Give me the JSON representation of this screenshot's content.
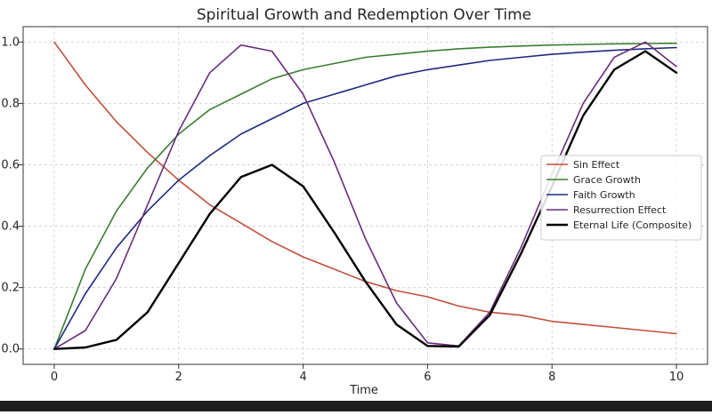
{
  "chart_data": {
    "type": "line",
    "title": "Spiritual Growth and Redemption Over Time",
    "xlabel": "Time",
    "ylabel": "",
    "xlim": [
      -0.5,
      10.5
    ],
    "ylim": [
      -0.05,
      1.05
    ],
    "xticks": [
      0,
      2,
      4,
      6,
      8,
      10
    ],
    "xtick_labels": [
      "0",
      "2",
      "4",
      "6",
      "8",
      "10"
    ],
    "yticks": [
      0.0,
      0.2,
      0.4,
      0.6,
      0.8,
      1.0
    ],
    "ytick_labels": [
      "0.0",
      "0.2",
      "0.4",
      "0.6",
      "0.8",
      "1.0"
    ],
    "grid": true,
    "legend_position": "center-right",
    "x": [
      0,
      0.5,
      1,
      1.5,
      2,
      2.5,
      3,
      3.5,
      4,
      4.5,
      5,
      5.5,
      6,
      6.5,
      7,
      7.5,
      8,
      8.5,
      9,
      9.5,
      10
    ],
    "series": [
      {
        "name": "Sin Effect",
        "color": "#c0503c",
        "values": [
          1.0,
          0.86,
          0.74,
          0.64,
          0.55,
          0.47,
          0.41,
          0.35,
          0.3,
          0.26,
          0.22,
          0.19,
          0.17,
          0.14,
          0.12,
          0.11,
          0.09,
          0.08,
          0.07,
          0.06,
          0.05
        ]
      },
      {
        "name": "Grace Growth",
        "color": "#3a7d32",
        "values": [
          0.0,
          0.26,
          0.45,
          0.59,
          0.7,
          0.78,
          0.83,
          0.88,
          0.91,
          0.93,
          0.95,
          0.96,
          0.97,
          0.978,
          0.983,
          0.987,
          0.99,
          0.992,
          0.994,
          0.995,
          0.996
        ]
      },
      {
        "name": "Faith Growth",
        "color": "#1f2a80",
        "values": [
          0.0,
          0.18,
          0.33,
          0.45,
          0.55,
          0.63,
          0.7,
          0.75,
          0.8,
          0.83,
          0.86,
          0.89,
          0.91,
          0.925,
          0.94,
          0.95,
          0.96,
          0.967,
          0.973,
          0.978,
          0.982
        ]
      },
      {
        "name": "Resurrection Effect",
        "color": "#6a2c7d",
        "values": [
          0.0,
          0.06,
          0.23,
          0.47,
          0.71,
          0.9,
          0.99,
          0.97,
          0.83,
          0.61,
          0.36,
          0.15,
          0.02,
          0.01,
          0.12,
          0.33,
          0.57,
          0.8,
          0.95,
          1.0,
          0.92
        ]
      },
      {
        "name": "Eternal Life (Composite)",
        "color": "#000000",
        "values": [
          0.0,
          0.005,
          0.03,
          0.12,
          0.28,
          0.44,
          0.56,
          0.6,
          0.53,
          0.38,
          0.22,
          0.08,
          0.01,
          0.008,
          0.11,
          0.31,
          0.53,
          0.76,
          0.91,
          0.97,
          0.9
        ]
      }
    ]
  }
}
